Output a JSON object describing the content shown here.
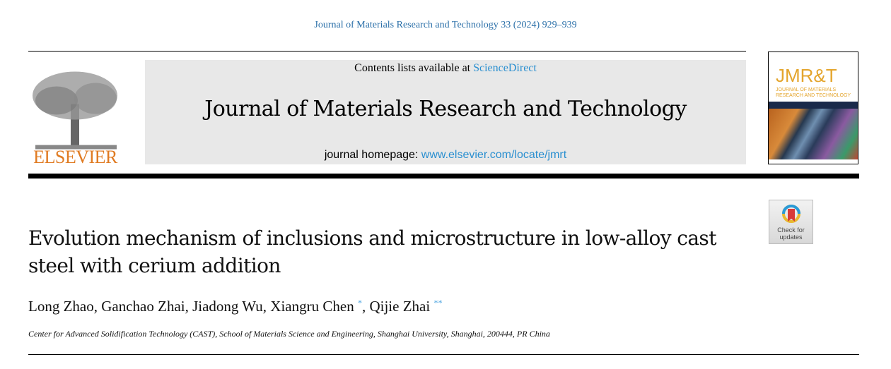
{
  "citation": "Journal of Materials Research and Technology 33 (2024) 929–939",
  "publisher": {
    "logo_text": "ELSEVIER",
    "color": "#e07b22"
  },
  "banner": {
    "contents_prefix": "Contents lists available at ",
    "contents_link": "ScienceDirect",
    "journal_title": "Journal of Materials Research and Technology",
    "homepage_prefix": "journal homepage: ",
    "homepage_link": "www.elsevier.com/locate/jmrt"
  },
  "cover": {
    "abbr": "JMR&T",
    "name": "JOURNAL OF MATERIALS RESEARCH AND TECHNOLOGY"
  },
  "check_updates": {
    "label": "Check for updates"
  },
  "article": {
    "title": "Evolution mechanism of inclusions and microstructure in low-alloy cast steel with cerium addition",
    "authors": [
      {
        "name": "Long Zhao",
        "mark": ""
      },
      {
        "name": "Ganchao Zhai",
        "mark": ""
      },
      {
        "name": "Jiadong Wu",
        "mark": ""
      },
      {
        "name": "Xiangru Chen",
        "mark": "*"
      },
      {
        "name": "Qijie Zhai",
        "mark": "**"
      }
    ],
    "affiliation": "Center for Advanced Solidification Technology (CAST), School of Materials Science and Engineering, Shanghai University, Shanghai, 200444, PR China"
  }
}
